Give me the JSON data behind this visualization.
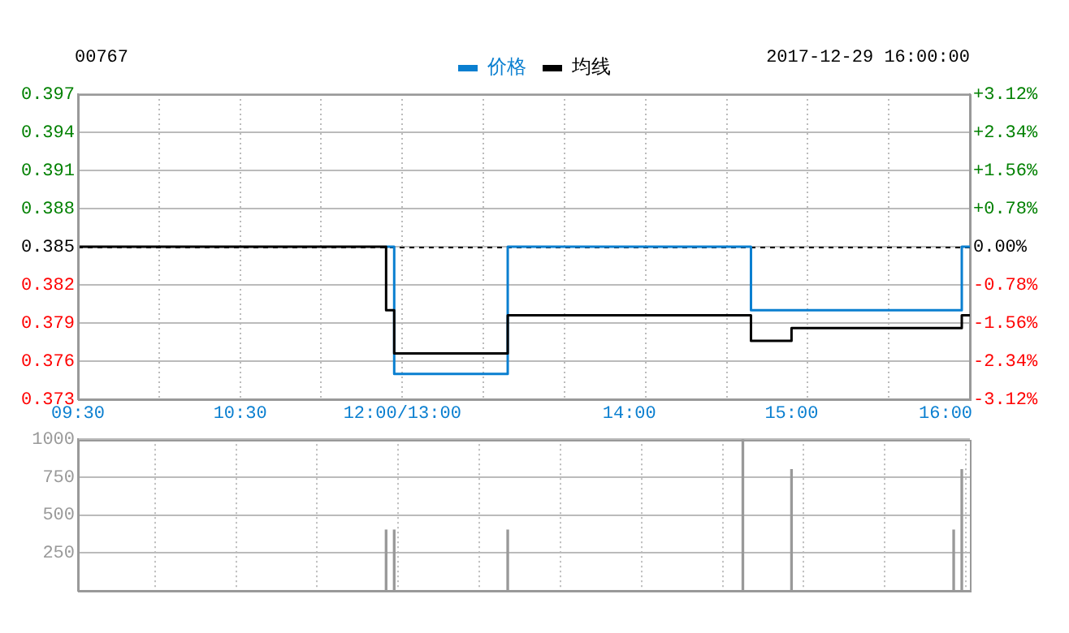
{
  "chart_data": [
    {
      "type": "step",
      "title": "00767",
      "subtitle": "2017-12-29 16:00:00",
      "categories": [
        "09:30",
        null,
        null,
        null,
        null,
        null,
        null,
        null,
        null,
        null,
        null,
        null,
        null,
        null,
        null,
        null,
        null,
        null,
        null,
        null,
        "10:30",
        null,
        null,
        null,
        null,
        null,
        null,
        null,
        null,
        null,
        null,
        null,
        null,
        null,
        null,
        null,
        null,
        null,
        null,
        null,
        "12:00/13:00",
        null,
        null,
        null,
        null,
        null,
        null,
        null,
        null,
        null,
        null,
        null,
        null,
        null,
        null,
        null,
        null,
        null,
        null,
        null,
        null,
        null,
        null,
        null,
        null,
        null,
        null,
        null,
        "14:00",
        null,
        null,
        null,
        null,
        null,
        null,
        null,
        null,
        null,
        null,
        null,
        null,
        null,
        null,
        null,
        null,
        null,
        null,
        null,
        "15:00",
        null,
        null,
        null,
        null,
        null,
        null,
        null,
        null,
        null,
        null,
        null,
        null,
        null,
        null,
        null,
        null,
        null,
        null,
        "16:00",
        null,
        null,
        null
      ],
      "series": [
        {
          "name": "价格",
          "color": "#0a7fd0",
          "values": [
            null,
            null,
            null,
            null,
            null,
            null,
            null,
            null,
            null,
            null,
            null,
            null,
            null,
            null,
            null,
            null,
            null,
            null,
            null,
            null,
            null,
            null,
            null,
            null,
            null,
            null,
            null,
            null,
            null,
            null,
            null,
            null,
            null,
            null,
            null,
            null,
            null,
            null,
            0.385,
            0.375,
            0.375,
            0.375,
            0.375,
            0.375,
            0.375,
            0.375,
            0.375,
            0.375,
            0.375,
            0.375,
            0.375,
            0.375,
            0.375,
            0.385,
            0.385,
            0.385,
            0.385,
            0.385,
            0.385,
            0.385,
            0.385,
            0.385,
            0.385,
            0.385,
            0.385,
            0.385,
            0.385,
            0.385,
            0.385,
            0.385,
            0.385,
            0.385,
            0.385,
            0.385,
            0.385,
            0.385,
            0.385,
            0.385,
            0.385,
            0.385,
            0.385,
            0.385,
            0.385,
            0.38,
            0.38,
            0.38,
            0.38,
            0.38,
            0.38,
            0.38,
            0.38,
            0.38,
            0.38,
            0.38,
            0.38,
            0.38,
            0.38,
            0.38,
            0.38,
            0.38,
            0.38,
            0.38,
            0.38,
            0.38,
            0.38,
            0.38,
            0.38,
            0.38,
            0.38,
            0.385,
            0.385
          ]
        },
        {
          "name": "均线",
          "color": "#000000",
          "values": [
            0.385,
            0.385,
            0.385,
            0.385,
            0.385,
            0.385,
            0.385,
            0.385,
            0.385,
            0.385,
            0.385,
            0.385,
            0.385,
            0.385,
            0.385,
            0.385,
            0.385,
            0.385,
            0.385,
            0.385,
            0.385,
            0.385,
            0.385,
            0.385,
            0.385,
            0.385,
            0.385,
            0.385,
            0.385,
            0.385,
            0.385,
            0.385,
            0.385,
            0.385,
            0.385,
            0.385,
            0.385,
            0.385,
            0.38,
            0.3766,
            0.3766,
            0.3766,
            0.3766,
            0.3766,
            0.3766,
            0.3766,
            0.3766,
            0.3766,
            0.3766,
            0.3766,
            0.3766,
            0.3766,
            0.3766,
            0.3796,
            0.3796,
            0.3796,
            0.3796,
            0.3796,
            0.3796,
            0.3796,
            0.3796,
            0.3796,
            0.3796,
            0.3796,
            0.3796,
            0.3796,
            0.3796,
            0.3796,
            0.3796,
            0.3796,
            0.3796,
            0.3796,
            0.3796,
            0.3796,
            0.3796,
            0.3796,
            0.3796,
            0.3796,
            0.3796,
            0.3796,
            0.3796,
            0.3796,
            0.3796,
            0.3776,
            0.3776,
            0.3776,
            0.3776,
            0.3776,
            0.3786,
            0.3786,
            0.3786,
            0.3786,
            0.3786,
            0.3786,
            0.3786,
            0.3786,
            0.3786,
            0.3786,
            0.3786,
            0.3786,
            0.3786,
            0.3786,
            0.3786,
            0.3786,
            0.3786,
            0.3786,
            0.3786,
            0.3786,
            0.3786,
            0.3796,
            0.3796
          ]
        }
      ],
      "ylim": [
        0.373,
        0.397
      ],
      "yticks": [
        0.373,
        0.376,
        0.379,
        0.382,
        0.385,
        0.388,
        0.391,
        0.394,
        0.397
      ],
      "y2lim": [
        -3.12,
        3.12
      ],
      "y2ticks": [
        {
          "value": -3.12,
          "label": "-3.12%"
        },
        {
          "value": -2.34,
          "label": "-2.34%"
        },
        {
          "value": -1.56,
          "label": "-1.56%"
        },
        {
          "value": -0.78,
          "label": "-0.78%"
        },
        {
          "value": 0,
          "label": "0.00%"
        },
        {
          "value": 0.78,
          "label": "+0.78%"
        },
        {
          "value": 1.56,
          "label": "+1.56%"
        },
        {
          "value": 2.34,
          "label": "+2.34%"
        },
        {
          "value": 3.12,
          "label": "+3.12%"
        }
      ],
      "ref_lines": [
        {
          "axis": "y",
          "value": 0.385,
          "color": "#000000",
          "line_style": "dashed"
        }
      ],
      "grid": true,
      "legend": "top"
    },
    {
      "type": "bar",
      "categories": [
        null,
        null,
        null,
        null,
        null,
        null,
        null,
        null,
        null,
        null,
        null,
        null,
        null,
        null,
        null,
        null,
        null,
        null,
        null,
        null,
        null,
        null,
        null,
        null,
        null,
        null,
        null,
        null,
        null,
        null,
        null,
        null,
        null,
        null,
        null,
        null,
        null,
        null,
        null,
        null,
        null,
        null,
        null,
        null,
        null,
        null,
        null,
        null,
        null,
        null,
        null,
        null,
        null,
        null,
        null,
        null,
        null,
        null,
        null,
        null,
        null,
        null,
        null,
        null,
        null,
        null,
        null,
        null,
        null,
        null,
        null,
        null,
        null,
        null,
        null,
        null,
        null,
        null,
        null,
        null,
        null,
        null,
        null,
        null,
        null,
        null,
        null,
        null,
        null,
        null,
        null,
        null,
        null,
        null,
        null,
        null,
        null,
        null,
        null,
        null,
        null,
        null,
        null,
        null,
        null,
        null,
        null,
        null,
        null,
        null,
        null
      ],
      "values": [
        null,
        null,
        null,
        null,
        null,
        null,
        null,
        null,
        null,
        null,
        null,
        null,
        null,
        null,
        null,
        null,
        null,
        null,
        null,
        null,
        null,
        null,
        null,
        null,
        null,
        null,
        null,
        null,
        null,
        null,
        null,
        null,
        null,
        null,
        null,
        null,
        null,
        null,
        400,
        400,
        null,
        null,
        null,
        null,
        null,
        null,
        null,
        null,
        null,
        null,
        null,
        null,
        null,
        400,
        null,
        null,
        null,
        null,
        null,
        null,
        null,
        null,
        null,
        null,
        null,
        null,
        null,
        null,
        null,
        null,
        null,
        null,
        null,
        null,
        null,
        null,
        null,
        null,
        null,
        null,
        null,
        null,
        1000,
        null,
        null,
        null,
        null,
        null,
        800,
        null,
        null,
        null,
        null,
        null,
        null,
        null,
        null,
        null,
        null,
        null,
        null,
        null,
        null,
        null,
        null,
        null,
        null,
        null,
        400,
        800,
        null
      ],
      "color": "#999999",
      "ylim": [
        0,
        1000
      ],
      "yticks": [
        250,
        500,
        750,
        1000
      ],
      "grid": true
    }
  ]
}
